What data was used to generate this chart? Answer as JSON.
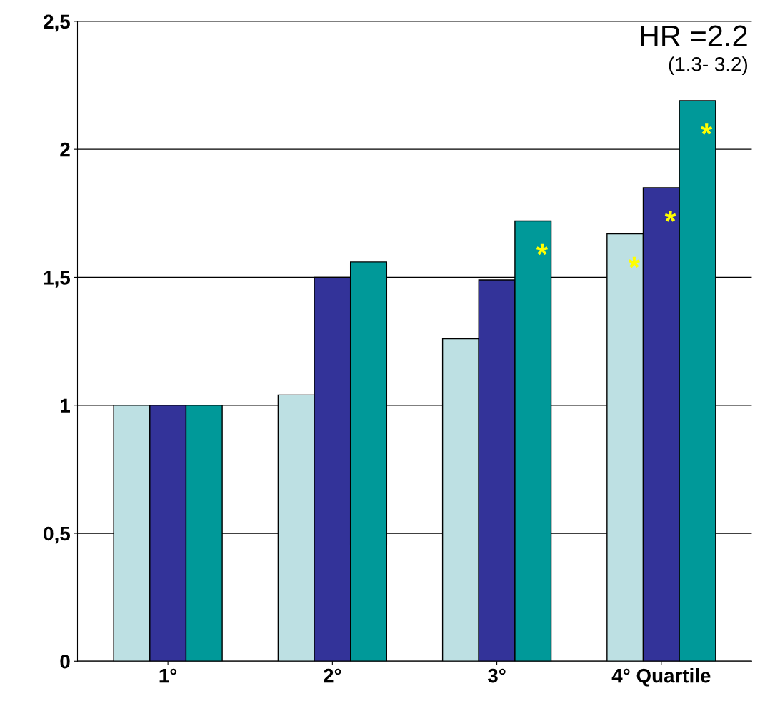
{
  "chart_data": {
    "type": "bar",
    "categories": [
      "1°",
      "2°",
      "3°",
      "4° Quartile"
    ],
    "series": [
      {
        "color": "#bde0e3",
        "values": [
          1.0,
          1.04,
          1.26,
          1.67
        ],
        "value_labels": [
          null,
          null,
          null,
          "*"
        ]
      },
      {
        "color": "#333399",
        "values": [
          1.0,
          1.5,
          1.49,
          1.85
        ],
        "value_labels": [
          null,
          null,
          null,
          "*"
        ]
      },
      {
        "color": "#009999",
        "values": [
          1.0,
          1.56,
          1.72,
          2.19
        ],
        "value_labels": [
          null,
          null,
          "*",
          "*"
        ]
      }
    ],
    "ylim": [
      0,
      2.5
    ],
    "yticks": [
      0,
      {
        "value": 0.5,
        "label": "0,5"
      },
      1,
      {
        "value": 1.5,
        "label": "1,5"
      },
      2,
      {
        "value": 2.5,
        "label": "2,5"
      }
    ],
    "grid": "y",
    "annotations": [
      "HR =2.2",
      "(1.3- 3.2)"
    ]
  }
}
